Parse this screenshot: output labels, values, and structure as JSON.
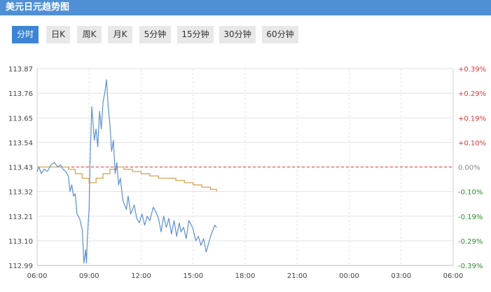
{
  "header": {
    "title": "美元日元趋势图"
  },
  "tabs": [
    {
      "label": "分时",
      "active": true
    },
    {
      "label": "日K"
    },
    {
      "label": "周K"
    },
    {
      "label": "月K"
    },
    {
      "label": "5分钟"
    },
    {
      "label": "15分钟"
    },
    {
      "label": "30分钟"
    },
    {
      "label": "60分钟"
    }
  ],
  "colors": {
    "header": "#4f8fd6",
    "active_tab": "#3d85d4",
    "price_line": "#5b8fd0",
    "average_line": "#d6a458",
    "reference_line": "#d43c3c",
    "positive_text": "#d43c3c",
    "negative_text": "#2d8a2d",
    "neutral_text": "#888888"
  },
  "chart_data": {
    "type": "line",
    "title": "美元日元趋势图",
    "reference_price": 113.43,
    "ylim": [
      112.99,
      113.87
    ],
    "y_ticks": [
      "113.87",
      "113.76",
      "113.65",
      "113.54",
      "113.43",
      "113.32",
      "113.21",
      "113.10",
      "112.99"
    ],
    "y_right_ticks": [
      "+0.39%",
      "+0.29%",
      "+0.19%",
      "+0.10%",
      "0.00%",
      "-0.10%",
      "-0.19%",
      "-0.29%",
      "-0.39%"
    ],
    "x_ticks": [
      "06:00",
      "09:00",
      "12:00",
      "15:00",
      "18:00",
      "21:00",
      "00:00",
      "03:00",
      "06:00"
    ],
    "x_range_hours": [
      0,
      24
    ],
    "grid": true,
    "series": [
      {
        "x": [
          0,
          0.1,
          0.25,
          0.4,
          0.6,
          0.8,
          1.0,
          1.2,
          1.35,
          1.5,
          1.65,
          1.8,
          1.9,
          2.0,
          2.1,
          2.2,
          2.3,
          2.45,
          2.6,
          2.7,
          2.8,
          2.85,
          2.9,
          3.0,
          3.05,
          3.15,
          3.3,
          3.4,
          3.5,
          3.6,
          3.7,
          3.8,
          3.9,
          4.0,
          4.1,
          4.2,
          4.3,
          4.4,
          4.5,
          4.6,
          4.7,
          4.8,
          4.95,
          5.05,
          5.15,
          5.25,
          5.4,
          5.6,
          5.75,
          5.9,
          6.05,
          6.2,
          6.35,
          6.5,
          6.7,
          6.85,
          7.0,
          7.15,
          7.3,
          7.45,
          7.6,
          7.75,
          7.9,
          8.05,
          8.2,
          8.3,
          8.45,
          8.6,
          8.75,
          8.9,
          9.0,
          9.15,
          9.3,
          9.45,
          9.6,
          9.75,
          9.9,
          10.0,
          10.1,
          10.25,
          10.35
        ],
        "values": [
          113.41,
          113.43,
          113.4,
          113.42,
          113.41,
          113.44,
          113.45,
          113.43,
          113.44,
          113.42,
          113.41,
          113.39,
          113.32,
          113.35,
          113.3,
          113.31,
          113.22,
          113.2,
          113.15,
          113.0,
          113.06,
          113.0,
          113.12,
          113.25,
          113.45,
          113.7,
          113.55,
          113.6,
          113.52,
          113.68,
          113.6,
          113.72,
          113.76,
          113.82,
          113.7,
          113.62,
          113.5,
          113.55,
          113.4,
          113.45,
          113.35,
          113.38,
          113.28,
          113.26,
          113.24,
          113.3,
          113.22,
          113.26,
          113.2,
          113.18,
          113.22,
          113.17,
          113.21,
          113.19,
          113.25,
          113.23,
          113.2,
          113.14,
          113.21,
          113.16,
          113.2,
          113.13,
          113.19,
          113.12,
          113.18,
          113.14,
          113.16,
          113.11,
          113.19,
          113.17,
          113.15,
          113.1,
          113.12,
          113.08,
          113.11,
          113.05,
          113.09,
          113.12,
          113.14,
          113.17,
          113.16
        ]
      },
      {
        "x": [
          0,
          1.0,
          1.8,
          2.2,
          2.6,
          3.0,
          3.4,
          3.8,
          4.2,
          4.6,
          5.0,
          5.5,
          6.0,
          6.5,
          7.0,
          7.5,
          8.0,
          8.5,
          9.0,
          9.5,
          10.0,
          10.35
        ],
        "values": [
          113.43,
          113.43,
          113.42,
          113.4,
          113.38,
          113.36,
          113.38,
          113.4,
          113.42,
          113.43,
          113.42,
          113.41,
          113.4,
          113.39,
          113.38,
          113.38,
          113.37,
          113.36,
          113.35,
          113.34,
          113.33,
          113.32
        ]
      }
    ]
  }
}
